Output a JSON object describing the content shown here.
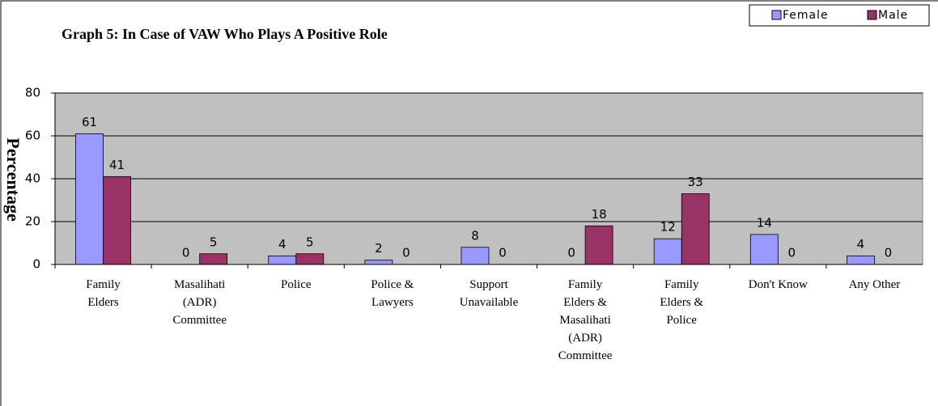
{
  "chart_data": {
    "type": "bar",
    "title": "Graph 5: In Case of VAW Who Plays A Positive Role",
    "y_label": "Percentage",
    "categories": [
      "Family Elders",
      "Masalihati (ADR) Committee",
      "Police",
      "Police & Lawyers",
      "Support Unavailable",
      "Family Elders & Masalihati (ADR) Committee",
      "Family Elders & Police",
      "Don't Know",
      "Any Other"
    ],
    "series": [
      {
        "name": "Female",
        "color": "#9999ff",
        "values": [
          61,
          0,
          4,
          2,
          8,
          0,
          12,
          14,
          4
        ]
      },
      {
        "name": "Male",
        "color": "#993366",
        "values": [
          41,
          5,
          5,
          0,
          0,
          18,
          33,
          0,
          0
        ]
      }
    ],
    "ylim": [
      0,
      80
    ],
    "yticks": [
      0,
      20,
      40,
      60,
      80
    ],
    "grid": true,
    "legend": "top-right"
  }
}
